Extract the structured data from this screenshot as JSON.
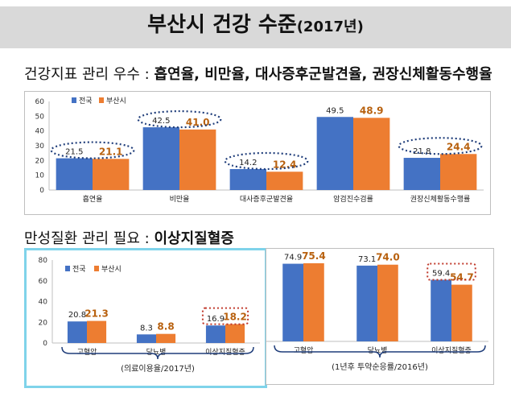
{
  "page": {
    "title": "부산시 건강 수준",
    "title_year": "(2017년)",
    "section1_label": "건강지표 관리 우수 :",
    "section1_highlight": "흡연율, 비만율, 대사증후군발견율, 권장신체활동수행율",
    "section2_label": "만성질환 관리 필요 :",
    "section2_highlight": "이상지질혈증",
    "bracket_label_left": "(의료이용율/2017년)",
    "bracket_label_right": "(1년후 투약순응률/2016년)"
  },
  "colors": {
    "national": "#4472c4",
    "busan": "#ed7d31",
    "busan_label": "#b8610f",
    "highlight_blue": "#1f3d7a",
    "highlight_red": "#c0392b",
    "panel_border_highlight": "#7fd3ea"
  },
  "chart_data": [
    {
      "type": "bar",
      "categories": [
        "흡연율",
        "비만율",
        "대사증후군발견율",
        "암검진수검률",
        "권장신체활동수행률"
      ],
      "series": [
        {
          "name": "전국",
          "values": [
            21.5,
            42.5,
            14.2,
            49.5,
            21.8
          ]
        },
        {
          "name": "부산시",
          "values": [
            21.1,
            41.0,
            12.4,
            48.9,
            24.4
          ]
        }
      ],
      "ylim": [
        0,
        60
      ],
      "yticks": [
        "0",
        "10",
        "20",
        "30",
        "40",
        "50",
        "60"
      ],
      "highlighted_categories": [
        "흡연율",
        "비만율",
        "대사증후군발견율",
        "권장신체활동수행률"
      ],
      "grid": false,
      "legend": "top-left"
    },
    {
      "type": "bar",
      "categories": [
        "고혈압",
        "당뇨병",
        "이상지질혈증"
      ],
      "series": [
        {
          "name": "전국",
          "values": [
            20.8,
            8.3,
            16.9
          ]
        },
        {
          "name": "부산시",
          "values": [
            21.3,
            8.8,
            18.2
          ]
        }
      ],
      "ylim": [
        0,
        80
      ],
      "yticks": [
        "0",
        "20",
        "40",
        "60",
        "80"
      ],
      "highlighted_categories": [
        "이상지질혈증"
      ],
      "grid": false,
      "legend": "top-left"
    },
    {
      "type": "bar",
      "categories": [
        "고혈압",
        "당뇨병",
        "이상지질혈증"
      ],
      "series": [
        {
          "name": "전국",
          "values": [
            74.9,
            73.1,
            59.4
          ]
        },
        {
          "name": "부산시",
          "values": [
            75.4,
            74.0,
            54.7
          ]
        }
      ],
      "ylim": [
        0,
        80
      ],
      "highlighted_categories": [
        "이상지질혈증"
      ],
      "grid": false
    }
  ]
}
